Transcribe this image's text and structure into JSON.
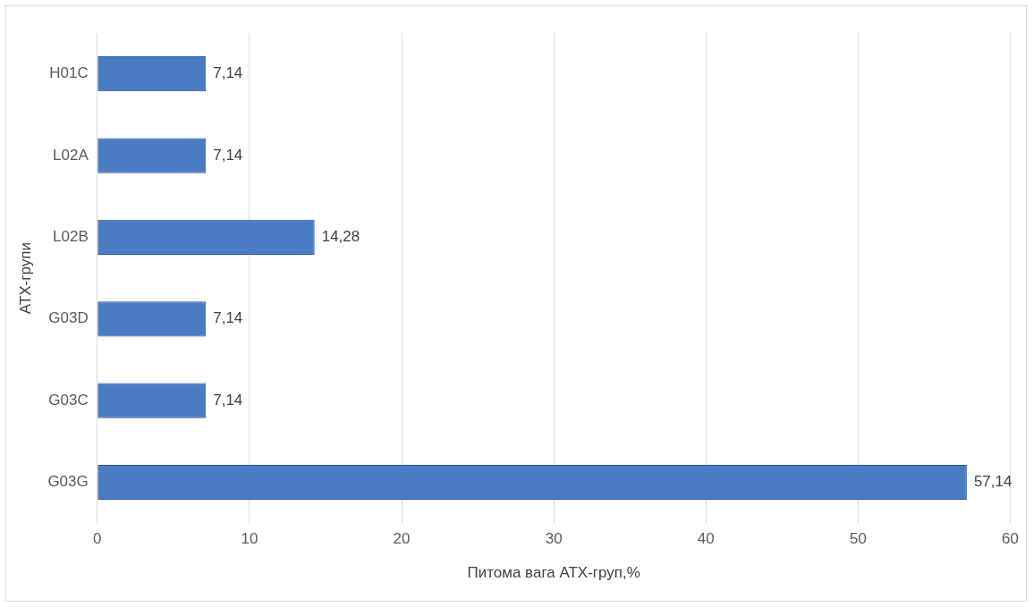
{
  "chart_data": {
    "type": "bar",
    "orientation": "horizontal",
    "xlabel": "Питома вага АТХ-груп,%",
    "ylabel": "АТХ-групи",
    "categories": [
      "H01C",
      "L02A",
      "L02B",
      "G03D",
      "G03C",
      "G03G"
    ],
    "values": [
      7.14,
      7.14,
      14.28,
      7.14,
      7.14,
      57.14
    ],
    "value_labels": [
      "7,14",
      "7,14",
      "14,28",
      "7,14",
      "7,14",
      "57,14"
    ],
    "color": "#4a7cc4",
    "xlim": [
      0,
      60
    ],
    "xticks": [
      0,
      10,
      20,
      30,
      40,
      50,
      60
    ],
    "grid": "x"
  }
}
